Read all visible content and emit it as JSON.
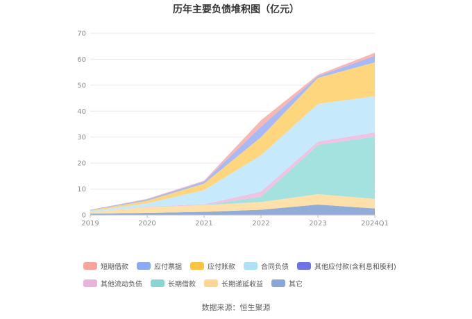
{
  "chart_data": {
    "type": "area",
    "stacked": true,
    "title": "历年主要负债堆积图（亿元）",
    "xlabel": "",
    "ylabel": "",
    "ylim": [
      0,
      70
    ],
    "yticks": [
      "0",
      "10",
      "20",
      "30",
      "40",
      "50",
      "60",
      "70"
    ],
    "x": [
      "2019",
      "2020",
      "2021",
      "2022",
      "2023",
      "2024Q1"
    ],
    "series": [
      {
        "name": "其它",
        "color": "#92acd8",
        "values": [
          0.5,
          0.8,
          1.2,
          2.0,
          4.0,
          2.5
        ]
      },
      {
        "name": "长期递延收益",
        "color": "#fde0aa",
        "values": [
          0.6,
          2.2,
          2.6,
          3.0,
          4.0,
          3.7
        ]
      },
      {
        "name": "长期借款",
        "color": "#a4e2df",
        "values": [
          0.0,
          0.0,
          0.0,
          2.0,
          19.0,
          24.0
        ]
      },
      {
        "name": "其他流动负债",
        "color": "#efc3e3",
        "values": [
          0.0,
          0.2,
          0.3,
          2.0,
          1.3,
          1.6
        ]
      },
      {
        "name": "其他应付款(含利息和股利)",
        "color": "#7d82e6",
        "values": [
          0.0,
          0.0,
          0.0,
          0.0,
          0.0,
          0.0
        ]
      },
      {
        "name": "合同负债",
        "color": "#c6eafb",
        "values": [
          0.4,
          1.3,
          5.5,
          14.0,
          14.5,
          14.0
        ]
      },
      {
        "name": "应付账款",
        "color": "#fdd67d",
        "values": [
          0.3,
          1.0,
          2.5,
          7.0,
          10.0,
          13.0
        ]
      },
      {
        "name": "应付票据",
        "color": "#a7baf5",
        "values": [
          0.2,
          0.5,
          0.8,
          4.0,
          0.7,
          2.5
        ]
      },
      {
        "name": "短期借款",
        "color": "#f8b7b2",
        "values": [
          0.0,
          0.2,
          0.3,
          2.5,
          0.5,
          1.2
        ]
      }
    ]
  },
  "legend": [
    {
      "label": "短期借款",
      "color": "#f6a49c"
    },
    {
      "label": "应付票据",
      "color": "#8caaf1"
    },
    {
      "label": "应付账款",
      "color": "#fbc442"
    },
    {
      "label": "合同负债",
      "color": "#aee1f8"
    },
    {
      "label": "其他应付款(含利息和股利)",
      "color": "#6f73e4"
    },
    {
      "label": "其他流动负债",
      "color": "#e9b4dc"
    },
    {
      "label": "长期借款",
      "color": "#88d5d1"
    },
    {
      "label": "长期递延收益",
      "color": "#fdd595"
    },
    {
      "label": "其它",
      "color": "#8aa6d8"
    }
  ],
  "source": "数据来源：恒生聚源"
}
